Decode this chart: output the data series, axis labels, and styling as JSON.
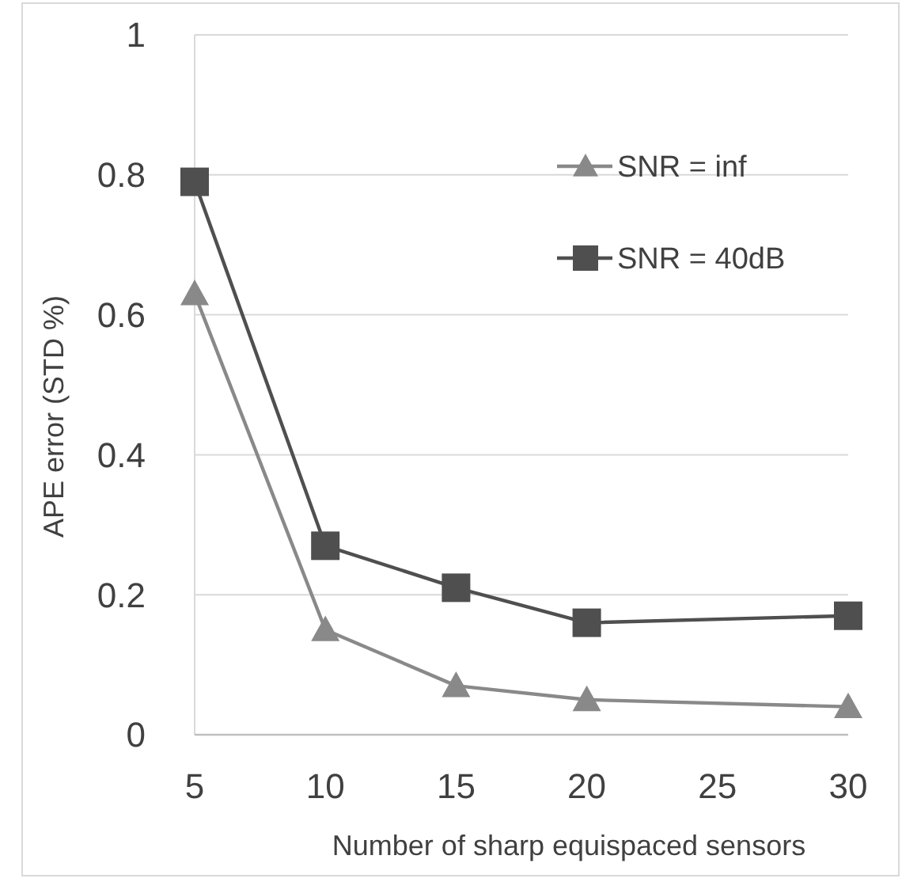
{
  "chart_data": {
    "type": "line",
    "xlabel": "Number of sharp equispaced sensors",
    "ylabel": "APE error (STD %)",
    "xlim": [
      5,
      30
    ],
    "xticks": [
      5,
      10,
      15,
      20,
      25,
      30
    ],
    "ylim": [
      0,
      1
    ],
    "yticks": [
      0,
      0.2,
      0.4,
      0.6,
      0.8,
      1
    ],
    "grid": "y",
    "legend": "top right",
    "series": [
      {
        "name": "SNR = inf",
        "color": "#898989",
        "marker": "triangle",
        "x": [
          5,
          10,
          15,
          20,
          30
        ],
        "values": [
          0.63,
          0.15,
          0.07,
          0.05,
          0.04
        ]
      },
      {
        "name": "SNR = 40dB",
        "color": "#4f4f4f",
        "marker": "square",
        "x": [
          5,
          10,
          15,
          20,
          30
        ],
        "values": [
          0.79,
          0.27,
          0.21,
          0.16,
          0.17
        ]
      }
    ]
  }
}
